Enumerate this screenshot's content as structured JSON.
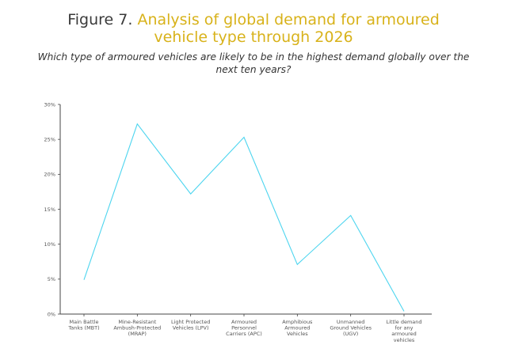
{
  "title": {
    "figure_label": "Figure 7.",
    "text_line1": "Analysis of global demand for armoured",
    "text_line2": "vehicle type through 2026"
  },
  "subtitle": "Which type of armoured vehicles are likely to be in the highest demand globally over the next ten years?",
  "colors": {
    "accent": "#d8b21a",
    "line": "#4dd5ef",
    "axis": "#444444"
  },
  "chart_data": {
    "type": "line",
    "title": "Analysis of global demand for armoured vehicle type through 2026",
    "categories": [
      [
        "Main Battle",
        "Tanks (MBT)"
      ],
      [
        "Mine-Resistant",
        "Ambush-Protected",
        "(MRAP)"
      ],
      [
        "Light Protected",
        "Vehicles (LPV)"
      ],
      [
        "Armoured",
        "Personnel",
        "Carriers (APC)"
      ],
      [
        "Amphibious",
        "Armoured",
        "Vehicles"
      ],
      [
        "Unmanned",
        "Ground Vehicles",
        "(UGV)"
      ],
      [
        "Little demand",
        "for any",
        "armoured",
        "vehicles"
      ]
    ],
    "values": [
      4.9,
      27.2,
      17.2,
      25.3,
      7.1,
      14.1,
      0.4
    ],
    "y_ticks": [
      "0%",
      "5%",
      "10%",
      "15%",
      "20%",
      "25%",
      "30%"
    ],
    "ylim": [
      0,
      30
    ],
    "grid": false,
    "legend": "none"
  }
}
